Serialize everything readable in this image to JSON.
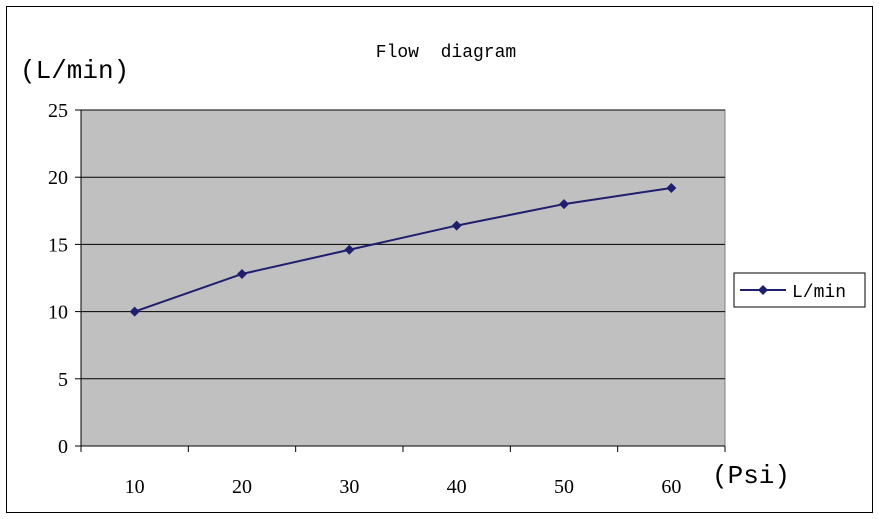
{
  "chart_data": {
    "type": "line",
    "title": "Flow  diagram",
    "ylabel": "(L/min)",
    "xlabel": "(Psi)",
    "categories": [
      "10",
      "20",
      "30",
      "40",
      "50",
      "60"
    ],
    "series": [
      {
        "name": "L/min",
        "values": [
          10,
          12.8,
          14.6,
          16.4,
          18,
          19.2
        ]
      }
    ],
    "ylim": [
      0,
      25
    ],
    "yticks": [
      "0",
      "5",
      "10",
      "15",
      "20",
      "25"
    ],
    "grid": "horizontal",
    "legend": "right",
    "colors": {
      "plot_bg": "#c0c0c0",
      "line": "#1f1f6e",
      "grid": "#000000"
    }
  }
}
